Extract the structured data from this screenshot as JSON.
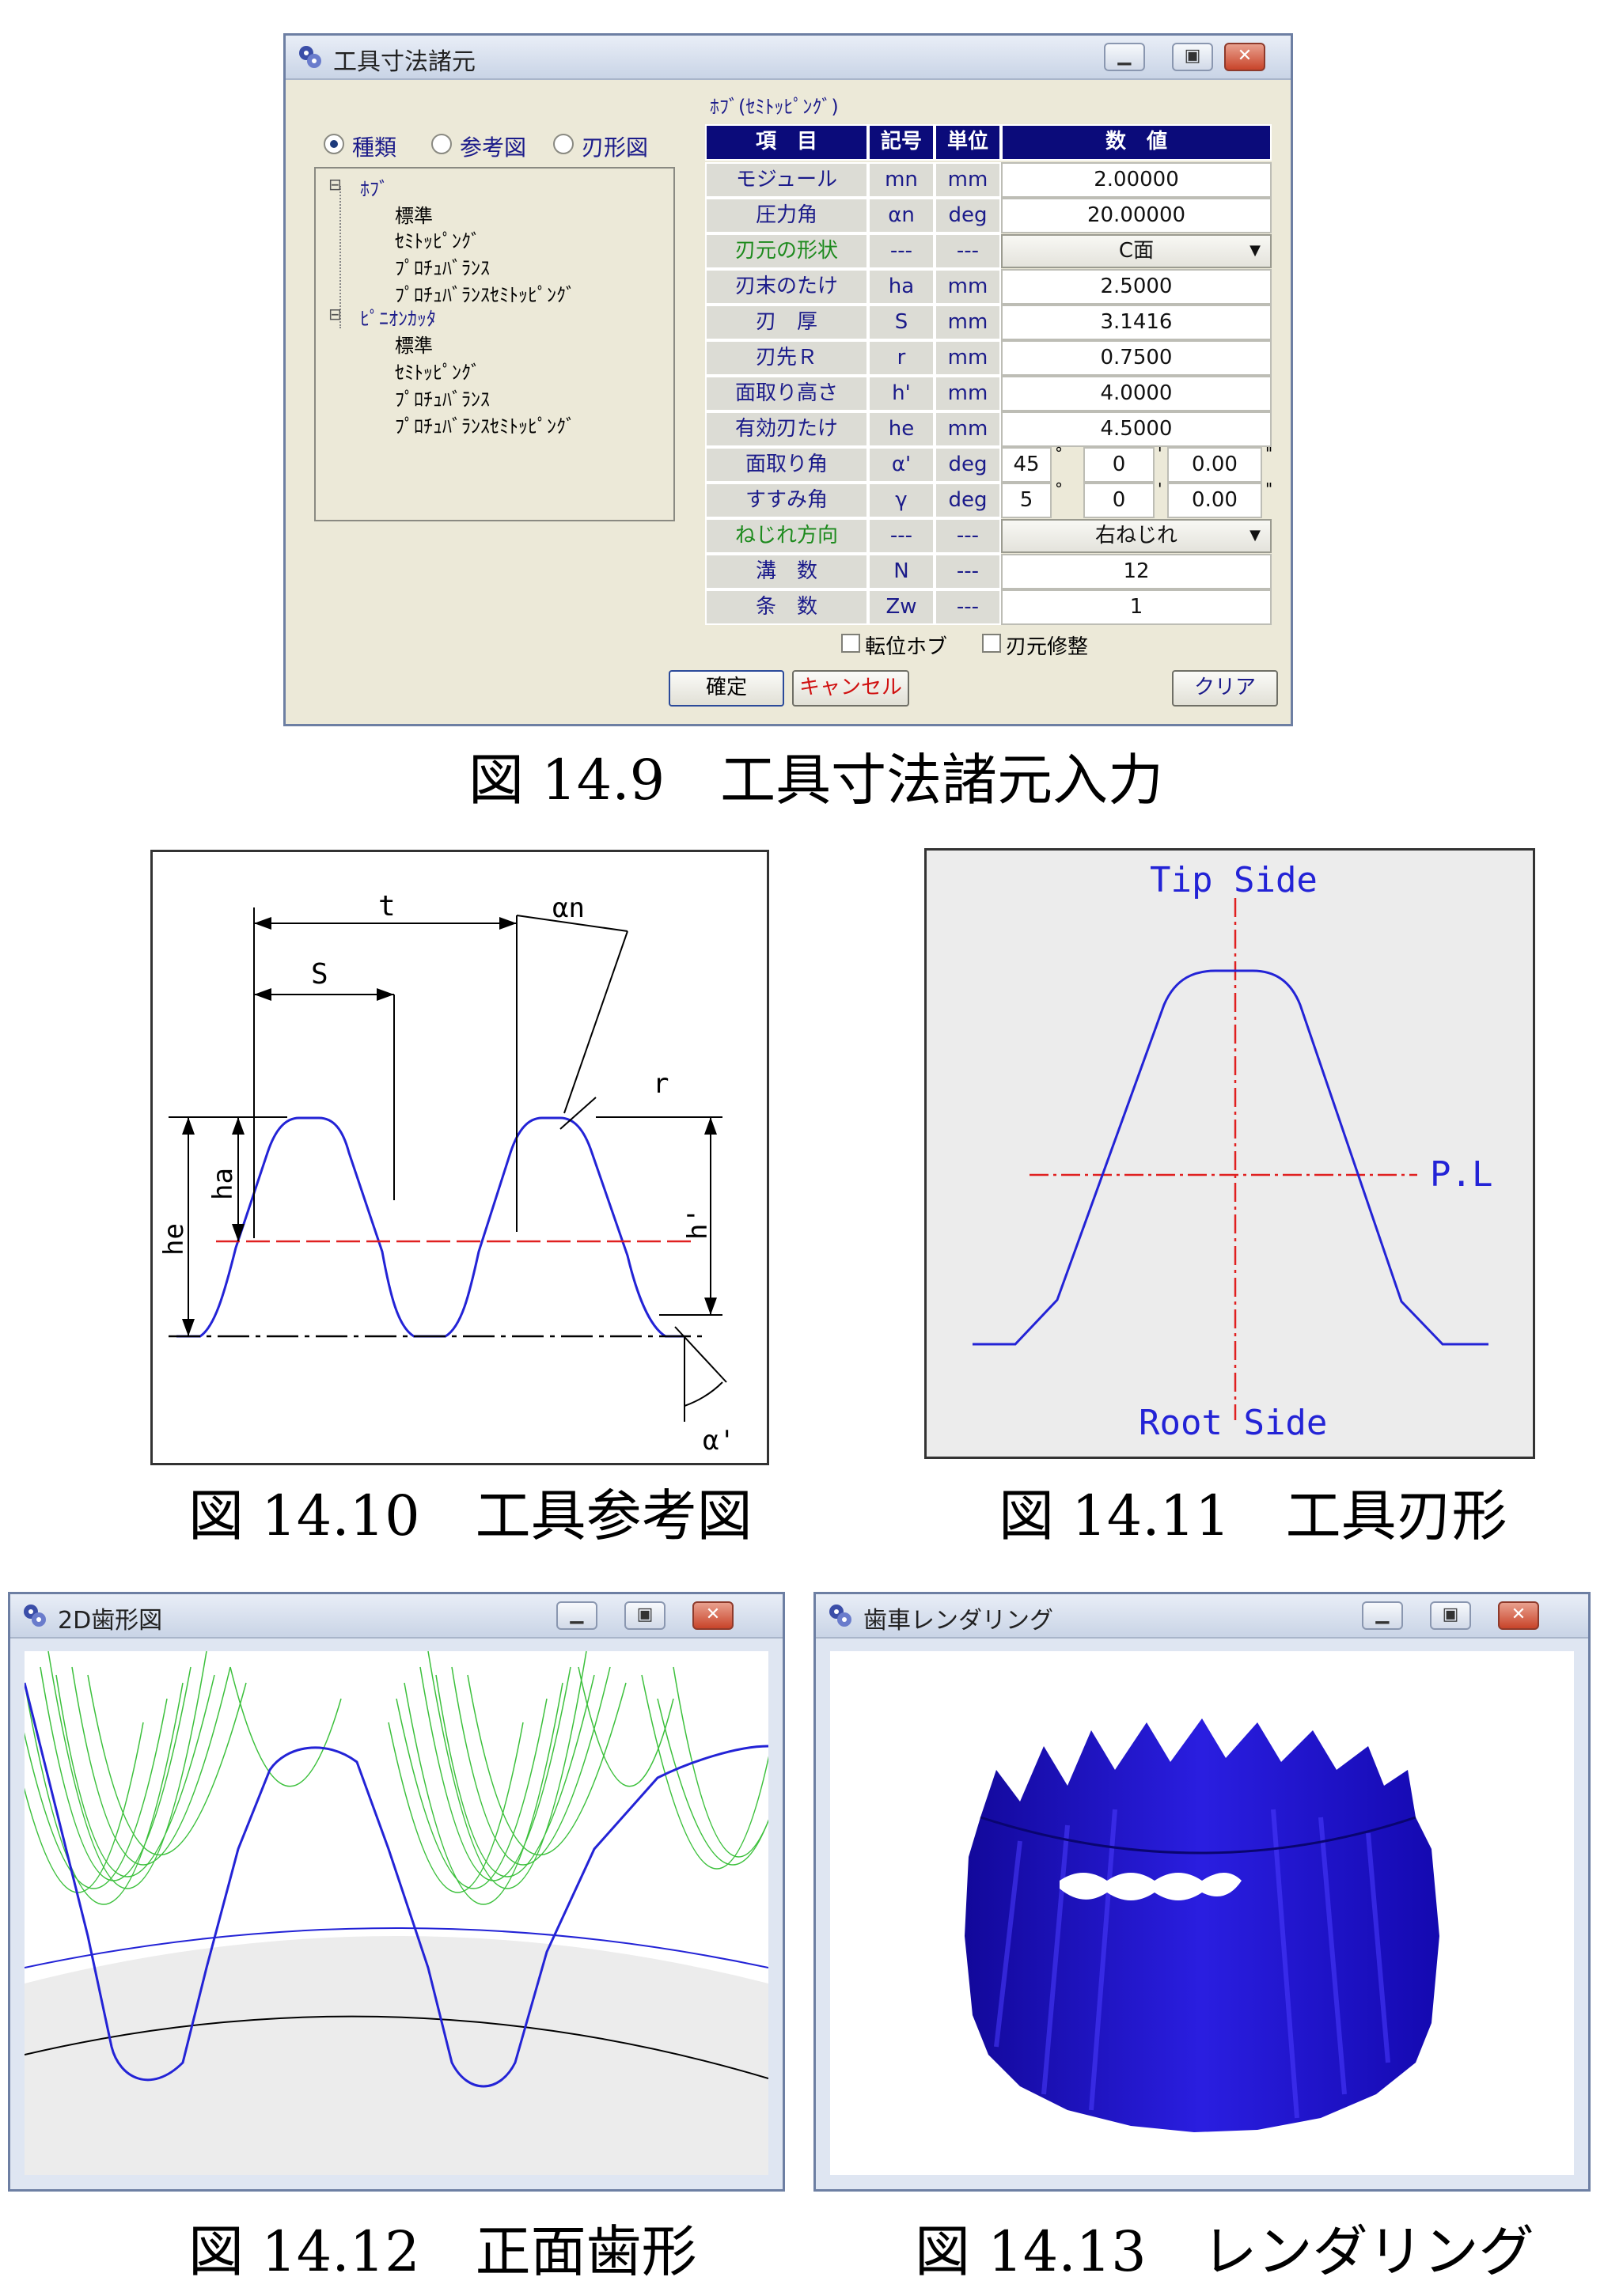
{
  "dialog": {
    "title": "工具寸法諸元",
    "radios": [
      "種類",
      "参考図",
      "刃形図"
    ],
    "tree": {
      "hob": "ﾎﾌﾞ",
      "hob_items": [
        "標準",
        "ｾﾐﾄｯﾋﾟﾝｸﾞ",
        "ﾌﾟﾛﾁｭﾊﾞﾗﾝｽ",
        "ﾌﾟﾛﾁｭﾊﾞﾗﾝｽｾﾐﾄｯﾋﾟﾝｸﾞ"
      ],
      "pinion": "ﾋﾟﾆｵﾝｶｯﾀ",
      "pinion_items": [
        "標準",
        "ｾﾐﾄｯﾋﾟﾝｸﾞ",
        "ﾌﾟﾛﾁｭﾊﾞﾗﾝｽ",
        "ﾌﾟﾛﾁｭﾊﾞﾗﾝｽｾﾐﾄｯﾋﾟﾝｸﾞ"
      ]
    },
    "subtitle": "ﾎﾌﾞ(ｾﾐﾄｯﾋﾟﾝｸﾞ)",
    "headers": [
      "項　目",
      "記号",
      "単位",
      "数　値"
    ],
    "rows": [
      {
        "label": "モジュール",
        "sym": "mn",
        "unit": "mm",
        "value": "2.00000"
      },
      {
        "label": "圧力角",
        "sym": "αn",
        "unit": "deg",
        "value": "20.00000"
      },
      {
        "label": "刃元の形状",
        "sym": "---",
        "unit": "---",
        "value": "C面"
      },
      {
        "label": "刃末のたけ",
        "sym": "ha",
        "unit": "mm",
        "value": "2.5000"
      },
      {
        "label": "刃　厚",
        "sym": "S",
        "unit": "mm",
        "value": "3.1416"
      },
      {
        "label": "刃先Ｒ",
        "sym": "r",
        "unit": "mm",
        "value": "0.7500"
      },
      {
        "label": "面取り高さ",
        "sym": "h'",
        "unit": "mm",
        "value": "4.0000"
      },
      {
        "label": "有効刃たけ",
        "sym": "he",
        "unit": "mm",
        "value": "4.5000"
      },
      {
        "label": "面取り角",
        "sym": "α'",
        "unit": "deg",
        "d": "45",
        "m": "0",
        "s": "0.00"
      },
      {
        "label": "すすみ角",
        "sym": "γ",
        "unit": "deg",
        "d": "5",
        "m": "0",
        "s": "0.00"
      },
      {
        "label": "ねじれ方向",
        "sym": "---",
        "unit": "---",
        "value": "右ねじれ"
      },
      {
        "label": "溝　数",
        "sym": "N",
        "unit": "---",
        "value": "12"
      },
      {
        "label": "条　数",
        "sym": "Zw",
        "unit": "---",
        "value": "1"
      }
    ],
    "deg_mark": "°",
    "min_mark": "'",
    "sec_mark": "\"",
    "checkboxes": [
      "転位ホブ",
      "刃元修整"
    ],
    "buttons": {
      "ok": "確定",
      "cancel": "キャンセル",
      "clear": "クリア"
    }
  },
  "captions": {
    "fig9": "図 14.9　工具寸法諸元入力",
    "fig10": "図 14.10　工具参考図",
    "fig11": "図 14.11　工具刃形",
    "fig12": "図 14.12　正面歯形",
    "fig13": "図 14.13　レンダリング"
  },
  "ref_figure": {
    "t": "t",
    "S": "S",
    "an": "αn",
    "r": "r",
    "he": "he",
    "ha": "ha",
    "hp": "h'",
    "ap": "α'"
  },
  "blade_figure": {
    "tip": "Tip Side",
    "root": "Root Side",
    "pl": "P.L"
  },
  "window_2d": {
    "title": "2D歯形図"
  },
  "window_render": {
    "title": "歯車レンダリング"
  },
  "colors": {
    "header_bg": "#0b0b7a",
    "profile": "#2323d6",
    "pitch_line": "#e02020",
    "envelope": "#3cc03c",
    "gear": "#1c13c8"
  }
}
